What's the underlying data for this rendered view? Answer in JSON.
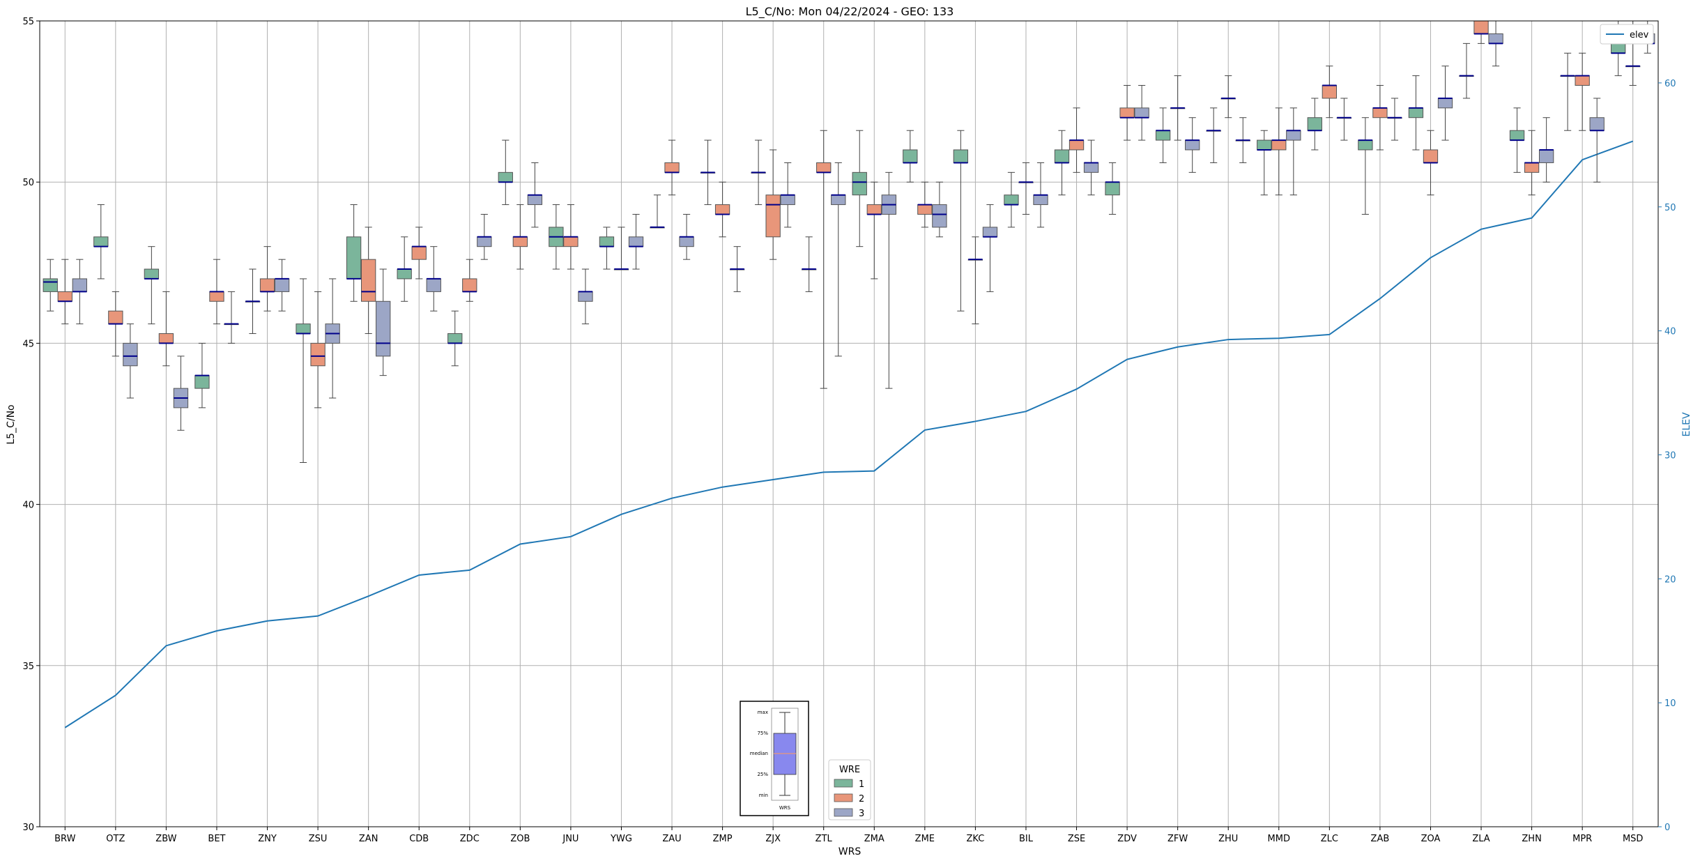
{
  "chart_data": {
    "type": "box",
    "title": "L5_C/No: Mon 04/22/2024 - GEO: 133",
    "xlabel": "WRS",
    "ylabel": "L5_C/No",
    "y2label": "ELEV",
    "ylim": [
      30,
      55
    ],
    "y2lim": [
      0,
      65
    ],
    "yticks": [
      30,
      35,
      40,
      45,
      50,
      55
    ],
    "y2ticks": [
      0,
      10,
      20,
      30,
      40,
      50,
      60
    ],
    "grid": true,
    "categories": [
      "BRW",
      "OTZ",
      "ZBW",
      "BET",
      "ZNY",
      "ZSU",
      "ZAN",
      "CDB",
      "ZDC",
      "ZOB",
      "JNU",
      "YWG",
      "ZAU",
      "ZMP",
      "ZJX",
      "ZTL",
      "ZMA",
      "ZME",
      "ZKC",
      "BIL",
      "ZSE",
      "ZDV",
      "ZFW",
      "ZHU",
      "MMD",
      "ZLC",
      "ZAB",
      "ZOA",
      "ZLA",
      "ZHN",
      "MPR",
      "MSD"
    ],
    "legend": {
      "title": "WRE",
      "placement": "bottom-center",
      "entries": [
        "1",
        "2",
        "3"
      ]
    },
    "colors": {
      "wre1": "#7bb59b",
      "wre2": "#e8967a",
      "wre3": "#9ca6c6",
      "median": "#00008b",
      "elev": "#1f77b4",
      "outlier": "#d62728"
    },
    "box_series": [
      {
        "name": "1",
        "boxes": [
          {
            "min": 46.0,
            "q1": 46.6,
            "median": 46.9,
            "q3": 47.0,
            "max": 47.6
          },
          {
            "min": 47.0,
            "q1": 48.0,
            "median": 48.0,
            "q3": 48.3,
            "max": 49.3
          },
          {
            "min": 45.6,
            "q1": 47.0,
            "median": 47.0,
            "q3": 47.3,
            "max": 48.0
          },
          {
            "min": 43.0,
            "q1": 43.6,
            "median": 44.0,
            "q3": 44.0,
            "max": 45.0
          },
          {
            "min": 45.3,
            "q1": 46.3,
            "median": 46.3,
            "q3": 46.3,
            "max": 47.3
          },
          {
            "min": 41.3,
            "q1": 45.3,
            "median": 45.3,
            "q3": 45.6,
            "max": 47.0
          },
          {
            "min": 46.3,
            "q1": 47.0,
            "median": 47.0,
            "q3": 48.3,
            "max": 49.3
          },
          {
            "min": 46.3,
            "q1": 47.0,
            "median": 47.3,
            "q3": 47.3,
            "max": 48.3
          },
          {
            "min": 44.3,
            "q1": 45.0,
            "median": 45.0,
            "q3": 45.3,
            "max": 46.0
          },
          {
            "min": 49.3,
            "q1": 50.0,
            "median": 50.0,
            "q3": 50.3,
            "max": 51.3
          },
          {
            "min": 47.3,
            "q1": 48.0,
            "median": 48.3,
            "q3": 48.6,
            "max": 49.3
          },
          {
            "min": 47.3,
            "q1": 48.0,
            "median": 48.0,
            "q3": 48.3,
            "max": 48.6
          },
          {
            "min": 48.6,
            "q1": 48.6,
            "median": 48.6,
            "q3": 48.6,
            "max": 49.6
          },
          {
            "min": 49.3,
            "q1": 50.3,
            "median": 50.3,
            "q3": 50.3,
            "max": 51.3
          },
          {
            "min": 49.3,
            "q1": 50.3,
            "median": 50.3,
            "q3": 50.3,
            "max": 51.3
          },
          {
            "min": 46.6,
            "q1": 47.3,
            "median": 47.3,
            "q3": 47.3,
            "max": 48.3
          },
          {
            "min": 48.0,
            "q1": 49.6,
            "median": 50.0,
            "q3": 50.3,
            "max": 51.6
          },
          {
            "min": 50.0,
            "q1": 50.6,
            "median": 50.6,
            "q3": 51.0,
            "max": 51.6
          },
          {
            "min": 46.0,
            "q1": 50.6,
            "median": 50.6,
            "q3": 51.0,
            "max": 51.6
          },
          {
            "min": 48.6,
            "q1": 49.3,
            "median": 49.3,
            "q3": 49.6,
            "max": 50.3
          },
          {
            "min": 49.6,
            "q1": 50.6,
            "median": 50.6,
            "q3": 51.0,
            "max": 51.6
          },
          {
            "min": 49.0,
            "q1": 49.6,
            "median": 50.0,
            "q3": 50.0,
            "max": 50.6
          },
          {
            "min": 50.6,
            "q1": 51.3,
            "median": 51.6,
            "q3": 51.6,
            "max": 52.3
          },
          {
            "min": 50.6,
            "q1": 51.6,
            "median": 51.6,
            "q3": 51.6,
            "max": 52.3
          },
          {
            "min": 49.6,
            "q1": 51.0,
            "median": 51.0,
            "q3": 51.3,
            "max": 51.6
          },
          {
            "min": 51.0,
            "q1": 51.6,
            "median": 51.6,
            "q3": 52.0,
            "max": 52.6
          },
          {
            "min": 49.0,
            "q1": 51.0,
            "median": 51.3,
            "q3": 51.3,
            "max": 52.0
          },
          {
            "min": 51.0,
            "q1": 52.0,
            "median": 52.3,
            "q3": 52.3,
            "max": 53.3
          },
          {
            "min": 52.6,
            "q1": 53.3,
            "median": 53.3,
            "q3": 53.3,
            "max": 54.3
          },
          {
            "min": 50.3,
            "q1": 51.3,
            "median": 51.3,
            "q3": 51.6,
            "max": 52.3
          },
          {
            "min": 51.6,
            "q1": 53.3,
            "median": 53.3,
            "q3": 53.3,
            "max": 54.0
          },
          {
            "min": 53.3,
            "q1": 54.0,
            "median": 54.0,
            "q3": 54.3,
            "max": 55.0
          }
        ]
      },
      {
        "name": "2",
        "boxes": [
          {
            "min": 45.6,
            "q1": 46.3,
            "median": 46.3,
            "q3": 46.6,
            "max": 47.6
          },
          {
            "min": 44.6,
            "q1": 45.6,
            "median": 45.6,
            "q3": 46.0,
            "max": 46.6
          },
          {
            "min": 44.3,
            "q1": 45.0,
            "median": 45.0,
            "q3": 45.3,
            "max": 46.6
          },
          {
            "min": 45.6,
            "q1": 46.3,
            "median": 46.6,
            "q3": 46.6,
            "max": 47.6
          },
          {
            "min": 46.0,
            "q1": 46.6,
            "median": 46.6,
            "q3": 47.0,
            "max": 48.0
          },
          {
            "min": 43.0,
            "q1": 44.3,
            "median": 44.6,
            "q3": 45.0,
            "max": 46.6
          },
          {
            "min": 45.3,
            "q1": 46.3,
            "median": 46.6,
            "q3": 47.6,
            "max": 48.6
          },
          {
            "min": 47.0,
            "q1": 47.6,
            "median": 48.0,
            "q3": 48.0,
            "max": 48.6
          },
          {
            "min": 46.3,
            "q1": 46.6,
            "median": 46.6,
            "q3": 47.0,
            "max": 47.6
          },
          {
            "min": 47.3,
            "q1": 48.0,
            "median": 48.3,
            "q3": 48.3,
            "max": 49.3
          },
          {
            "min": 47.3,
            "q1": 48.0,
            "median": 48.3,
            "q3": 48.3,
            "max": 49.3
          },
          {
            "min": 47.3,
            "q1": 47.3,
            "median": 47.3,
            "q3": 47.3,
            "max": 48.6
          },
          {
            "min": 49.6,
            "q1": 50.3,
            "median": 50.3,
            "q3": 50.6,
            "max": 51.3
          },
          {
            "min": 48.3,
            "q1": 49.0,
            "median": 49.0,
            "q3": 49.3,
            "max": 50.0
          },
          {
            "min": 47.6,
            "q1": 48.3,
            "median": 49.3,
            "q3": 49.6,
            "max": 51.0
          },
          {
            "min": 43.6,
            "q1": 50.3,
            "median": 50.3,
            "q3": 50.6,
            "max": 51.6
          },
          {
            "min": 47.0,
            "q1": 49.0,
            "median": 49.0,
            "q3": 49.3,
            "max": 50.0
          },
          {
            "min": 48.6,
            "q1": 49.0,
            "median": 49.3,
            "q3": 49.3,
            "max": 50.0
          },
          {
            "min": 45.6,
            "q1": 47.6,
            "median": 47.6,
            "q3": 47.6,
            "max": 48.3
          },
          {
            "min": 49.0,
            "q1": 50.0,
            "median": 50.0,
            "q3": 50.0,
            "max": 50.6
          },
          {
            "min": 50.3,
            "q1": 51.0,
            "median": 51.3,
            "q3": 51.3,
            "max": 52.3
          },
          {
            "min": 51.3,
            "q1": 52.0,
            "median": 52.0,
            "q3": 52.3,
            "max": 53.0
          },
          {
            "min": 51.3,
            "q1": 52.3,
            "median": 52.3,
            "q3": 52.3,
            "max": 53.3
          },
          {
            "min": 52.0,
            "q1": 52.6,
            "median": 52.6,
            "q3": 52.6,
            "max": 53.3
          },
          {
            "min": 49.6,
            "q1": 51.0,
            "median": 51.3,
            "q3": 51.3,
            "max": 52.3
          },
          {
            "min": 52.0,
            "q1": 52.6,
            "median": 53.0,
            "q3": 53.0,
            "max": 53.6
          },
          {
            "min": 51.0,
            "q1": 52.0,
            "median": 52.3,
            "q3": 52.3,
            "max": 53.0
          },
          {
            "min": 49.6,
            "q1": 50.6,
            "median": 50.6,
            "q3": 51.0,
            "max": 51.6
          },
          {
            "min": 54.3,
            "q1": 54.6,
            "median": 54.6,
            "q3": 55.0,
            "max": 55.0
          },
          {
            "min": 49.6,
            "q1": 50.3,
            "median": 50.6,
            "q3": 50.6,
            "max": 51.6
          },
          {
            "min": 51.6,
            "q1": 53.0,
            "median": 53.3,
            "q3": 53.3,
            "max": 54.0
          },
          {
            "min": 53.0,
            "q1": 53.6,
            "median": 53.6,
            "q3": 53.6,
            "max": 55.0
          }
        ]
      },
      {
        "name": "3",
        "boxes": [
          {
            "min": 45.6,
            "q1": 46.6,
            "median": 46.6,
            "q3": 47.0,
            "max": 47.6
          },
          {
            "min": 43.3,
            "q1": 44.3,
            "median": 44.6,
            "q3": 45.0,
            "max": 45.6
          },
          {
            "min": 42.3,
            "q1": 43.0,
            "median": 43.3,
            "q3": 43.6,
            "max": 44.6
          },
          {
            "min": 45.0,
            "q1": 45.6,
            "median": 45.6,
            "q3": 45.6,
            "max": 46.6
          },
          {
            "min": 46.0,
            "q1": 46.6,
            "median": 47.0,
            "q3": 47.0,
            "max": 47.6
          },
          {
            "min": 43.3,
            "q1": 45.0,
            "median": 45.3,
            "q3": 45.6,
            "max": 47.0
          },
          {
            "min": 44.0,
            "q1": 44.6,
            "median": 45.0,
            "q3": 46.3,
            "max": 47.3
          },
          {
            "min": 46.0,
            "q1": 46.6,
            "median": 47.0,
            "q3": 47.0,
            "max": 48.0
          },
          {
            "min": 47.6,
            "q1": 48.0,
            "median": 48.3,
            "q3": 48.3,
            "max": 49.0
          },
          {
            "min": 48.6,
            "q1": 49.3,
            "median": 49.6,
            "q3": 49.6,
            "max": 50.6
          },
          {
            "min": 45.6,
            "q1": 46.3,
            "median": 46.6,
            "q3": 46.6,
            "max": 47.3
          },
          {
            "min": 47.3,
            "q1": 48.0,
            "median": 48.0,
            "q3": 48.3,
            "max": 49.0
          },
          {
            "min": 47.6,
            "q1": 48.0,
            "median": 48.3,
            "q3": 48.3,
            "max": 49.0
          },
          {
            "min": 46.6,
            "q1": 47.3,
            "median": 47.3,
            "q3": 47.3,
            "max": 48.0
          },
          {
            "min": 48.6,
            "q1": 49.3,
            "median": 49.6,
            "q3": 49.6,
            "max": 50.6
          },
          {
            "min": 44.6,
            "q1": 49.3,
            "median": 49.6,
            "q3": 49.6,
            "max": 50.6
          },
          {
            "min": 43.6,
            "q1": 49.0,
            "median": 49.3,
            "q3": 49.6,
            "max": 50.3
          },
          {
            "min": 48.3,
            "q1": 48.6,
            "median": 49.0,
            "q3": 49.3,
            "max": 50.0
          },
          {
            "min": 46.6,
            "q1": 48.3,
            "median": 48.3,
            "q3": 48.6,
            "max": 49.3
          },
          {
            "min": 48.6,
            "q1": 49.3,
            "median": 49.6,
            "q3": 49.6,
            "max": 50.6
          },
          {
            "min": 49.6,
            "q1": 50.3,
            "median": 50.6,
            "q3": 50.6,
            "max": 51.3
          },
          {
            "min": 51.3,
            "q1": 52.0,
            "median": 52.0,
            "q3": 52.3,
            "max": 53.0
          },
          {
            "min": 50.3,
            "q1": 51.0,
            "median": 51.3,
            "q3": 51.3,
            "max": 52.0
          },
          {
            "min": 50.6,
            "q1": 51.3,
            "median": 51.3,
            "q3": 51.3,
            "max": 52.0
          },
          {
            "min": 49.6,
            "q1": 51.3,
            "median": 51.6,
            "q3": 51.6,
            "max": 52.3
          },
          {
            "min": 51.3,
            "q1": 52.0,
            "median": 52.0,
            "q3": 52.0,
            "max": 52.6
          },
          {
            "min": 51.3,
            "q1": 52.0,
            "median": 52.0,
            "q3": 52.0,
            "max": 52.6
          },
          {
            "min": 51.3,
            "q1": 52.3,
            "median": 52.6,
            "q3": 52.6,
            "max": 53.6
          },
          {
            "min": 53.6,
            "q1": 54.3,
            "median": 54.3,
            "q3": 54.6,
            "max": 55.0
          },
          {
            "min": 50.0,
            "q1": 50.6,
            "median": 51.0,
            "q3": 51.0,
            "max": 52.0
          },
          {
            "min": 50.0,
            "q1": 51.6,
            "median": 51.6,
            "q3": 52.0,
            "max": 52.6
          },
          {
            "min": 54.0,
            "q1": 54.3,
            "median": 54.3,
            "q3": 54.6,
            "max": 55.0
          }
        ]
      }
    ],
    "line_series": {
      "name": "elev",
      "axis": "right",
      "values": [
        8.0,
        10.6,
        14.6,
        15.8,
        16.6,
        17.0,
        18.6,
        20.3,
        20.7,
        22.8,
        23.4,
        25.2,
        26.5,
        27.4,
        28.0,
        28.6,
        28.7,
        32.0,
        32.7,
        33.5,
        35.3,
        37.7,
        38.7,
        39.3,
        39.4,
        39.7,
        42.6,
        45.9,
        48.2,
        49.1,
        53.8,
        55.3
      ]
    },
    "box_key": {
      "labels": [
        "max",
        "75%",
        "median",
        "25%",
        "min"
      ],
      "xlabel": "WRS"
    }
  }
}
